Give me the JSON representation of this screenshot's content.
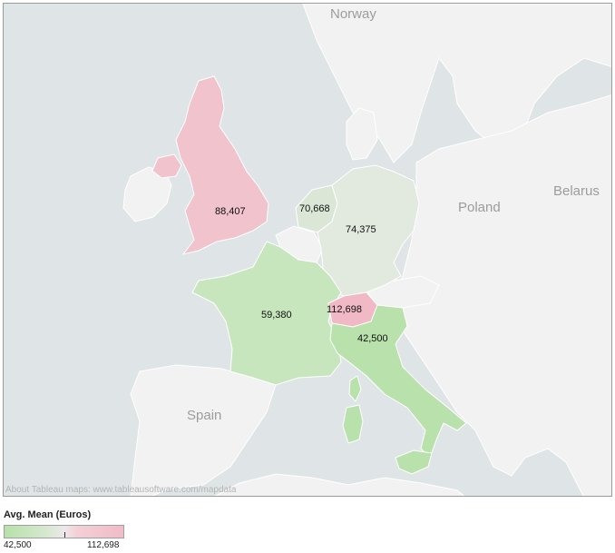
{
  "map": {
    "country_labels": {
      "norway": "Norway",
      "poland": "Poland",
      "belarus": "Belarus",
      "spain": "Spain"
    },
    "regions": [
      {
        "name": "United Kingdom",
        "value_label": "88,407",
        "color": "#f1c3cc"
      },
      {
        "name": "Netherlands",
        "value_label": "70,668",
        "color": "#dbe6d6"
      },
      {
        "name": "Germany",
        "value_label": "74,375",
        "color": "#e2e9df"
      },
      {
        "name": "France",
        "value_label": "59,380",
        "color": "#c8e6bd"
      },
      {
        "name": "Switzerland",
        "value_label": "112,698",
        "color": "#f0b9c5"
      },
      {
        "name": "Italy",
        "value_label": "42,500",
        "color": "#b9e1ab"
      }
    ],
    "credit": "About Tableau maps: www.tableausoftware.com/mapdata",
    "colors": {
      "water": "#dfe5e6",
      "land": "#f2f2f2",
      "border": "#ffffff",
      "low": "#b7e1a8",
      "mid": "#ece8ea",
      "high": "#f0bcc7"
    }
  },
  "legend": {
    "title": "Avg. Mean (Euros)",
    "min_label": "42,500",
    "max_label": "112,698"
  }
}
